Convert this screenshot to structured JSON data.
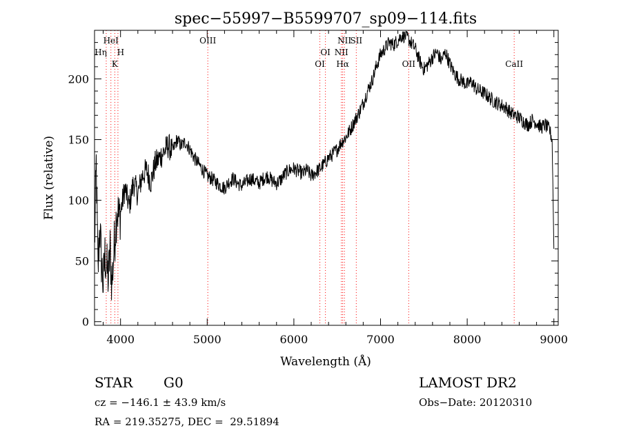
{
  "chart_data": {
    "type": "line",
    "title": "spec−55997−B5599707_sp09−114.fits",
    "xlabel": "Wavelength (Å)",
    "ylabel": "Flux (relative)",
    "xlim": [
      3700,
      9050
    ],
    "ylim": [
      -3,
      240
    ],
    "xticks": [
      4000,
      5000,
      6000,
      7000,
      8000,
      9000
    ],
    "yticks": [
      0,
      50,
      100,
      150,
      200
    ],
    "grid": false,
    "legend": "none",
    "line_color": "#000000",
    "marker_color": "#ff0000",
    "series": [
      {
        "x": [
          3700,
          3720,
          3740,
          3760,
          3780,
          3800,
          3820,
          3840,
          3860,
          3880,
          3900,
          3920,
          3940,
          3960,
          3980,
          4000,
          4050,
          4100,
          4150,
          4200,
          4250,
          4300,
          4350,
          4400,
          4450,
          4500,
          4550,
          4600,
          4650,
          4700,
          4750,
          4800,
          4850,
          4900,
          4950,
          5000,
          5050,
          5100,
          5150,
          5200,
          5250,
          5300,
          5350,
          5400,
          5450,
          5500,
          5550,
          5600,
          5650,
          5700,
          5750,
          5800,
          5850,
          5900,
          5950,
          6000,
          6050,
          6100,
          6150,
          6200,
          6250,
          6300,
          6350,
          6400,
          6450,
          6500,
          6550,
          6600,
          6650,
          6700,
          6750,
          6800,
          6850,
          6900,
          6950,
          7000,
          7050,
          7100,
          7150,
          7200,
          7250,
          7300,
          7350,
          7400,
          7450,
          7500,
          7550,
          7600,
          7650,
          7700,
          7750,
          7800,
          7850,
          7900,
          7950,
          8000,
          8050,
          8100,
          8150,
          8200,
          8250,
          8300,
          8350,
          8400,
          8450,
          8500,
          8550,
          8600,
          8650,
          8700,
          8750,
          8800,
          8850,
          8900,
          8950,
          8980,
          9000
        ],
        "y": [
          60,
          130,
          40,
          80,
          50,
          30,
          55,
          45,
          35,
          60,
          30,
          55,
          75,
          95,
          85,
          90,
          110,
          95,
          115,
          105,
          120,
          125,
          115,
          130,
          135,
          140,
          145,
          140,
          150,
          145,
          148,
          142,
          135,
          130,
          125,
          120,
          118,
          115,
          112,
          110,
          115,
          118,
          114,
          112,
          115,
          118,
          116,
          114,
          118,
          120,
          116,
          114,
          117,
          122,
          125,
          126,
          124,
          122,
          125,
          120,
          123,
          126,
          130,
          135,
          138,
          142,
          148,
          152,
          158,
          165,
          172,
          180,
          190,
          198,
          210,
          220,
          225,
          230,
          228,
          232,
          236,
          235,
          230,
          225,
          215,
          208,
          212,
          218,
          222,
          215,
          222,
          212,
          205,
          200,
          198,
          195,
          198,
          192,
          190,
          188,
          185,
          182,
          180,
          178,
          176,
          172,
          170,
          168,
          165,
          162,
          166,
          164,
          160,
          162,
          158,
          150,
          60
        ]
      }
    ],
    "lines_markers": [
      {
        "label": "HeI",
        "x": 3889,
        "row": 1
      },
      {
        "label": "Hη",
        "x": 3835,
        "row": 2
      },
      {
        "label": "H",
        "x": 3970,
        "row": 2
      },
      {
        "label": "K",
        "x": 3934,
        "row": 3
      },
      {
        "label": "OIII",
        "x": 5007,
        "row": 1
      },
      {
        "label": "OI",
        "x": 6364,
        "row": 2
      },
      {
        "label": "OI",
        "x": 6300,
        "row": 3
      },
      {
        "label": "NII",
        "x": 6583,
        "row": 1
      },
      {
        "label": "SII",
        "x": 6720,
        "row": 1
      },
      {
        "label": "NII",
        "x": 6548,
        "row": 2
      },
      {
        "label": "Hα",
        "x": 6563,
        "row": 3
      },
      {
        "label": "OII",
        "x": 7325,
        "row": 3
      },
      {
        "label": "CaII",
        "x": 8542,
        "row": 3
      }
    ]
  },
  "info": {
    "object_class": "STAR",
    "subclass": "G0",
    "survey": "LAMOST DR2",
    "cz": "cz = −146.1 ± 43.9 km/s",
    "obs_date": "Obs−Date: 20120310",
    "coords": "RA = 219.35275, DEC =  29.51894"
  }
}
